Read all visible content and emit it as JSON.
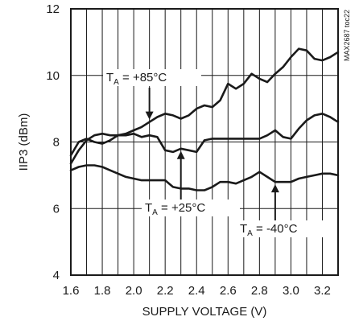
{
  "chart_data": {
    "type": "line",
    "title": "",
    "xlabel": "SUPPLY VOLTAGE (V)",
    "ylabel": "IIP3 (dBm)",
    "xlim": [
      1.6,
      3.3
    ],
    "ylim": [
      4,
      12
    ],
    "xticks": [
      1.6,
      1.8,
      2.0,
      2.2,
      2.4,
      2.6,
      2.8,
      3.0,
      3.2
    ],
    "xtick_labels": [
      "1.6",
      "1.8",
      "2.0",
      "2.2",
      "2.4",
      "2.6",
      "2.8",
      "3.0",
      "3.2"
    ],
    "yticks": [
      4,
      6,
      8,
      10,
      12
    ],
    "ytick_labels": [
      "4",
      "6",
      "8",
      "10",
      "12"
    ],
    "x_grid": [
      1.6,
      1.7,
      1.8,
      1.9,
      2.0,
      2.1,
      2.2,
      2.3,
      2.4,
      2.5,
      2.6,
      2.7,
      2.8,
      2.9,
      3.0,
      3.1,
      3.2,
      3.3
    ],
    "y_grid": [
      4,
      6,
      8,
      10,
      12
    ],
    "grid": true,
    "series": [
      {
        "name": "TA = +85°C",
        "x": [
          1.6,
          1.65,
          1.7,
          1.75,
          1.8,
          1.85,
          1.9,
          1.95,
          2.0,
          2.05,
          2.1,
          2.15,
          2.2,
          2.25,
          2.3,
          2.35,
          2.4,
          2.45,
          2.5,
          2.55,
          2.6,
          2.65,
          2.7,
          2.75,
          2.8,
          2.85,
          2.9,
          2.95,
          3.0,
          3.05,
          3.1,
          3.15,
          3.2,
          3.25,
          3.3
        ],
        "values": [
          7.6,
          8.0,
          8.1,
          8.0,
          7.95,
          8.05,
          8.2,
          8.25,
          8.35,
          8.45,
          8.6,
          8.75,
          8.85,
          8.8,
          8.7,
          8.8,
          9.0,
          9.1,
          9.05,
          9.25,
          9.75,
          9.6,
          9.75,
          10.05,
          9.9,
          9.8,
          10.05,
          10.25,
          10.55,
          10.8,
          10.75,
          10.5,
          10.45,
          10.55,
          10.7
        ]
      },
      {
        "name": "TA = +25°C",
        "x": [
          1.6,
          1.65,
          1.7,
          1.75,
          1.8,
          1.85,
          1.9,
          1.95,
          2.0,
          2.05,
          2.1,
          2.15,
          2.2,
          2.25,
          2.3,
          2.35,
          2.4,
          2.45,
          2.5,
          2.55,
          2.6,
          2.65,
          2.7,
          2.75,
          2.8,
          2.85,
          2.9,
          2.95,
          3.0,
          3.05,
          3.1,
          3.15,
          3.2,
          3.25,
          3.3
        ],
        "values": [
          7.35,
          7.75,
          8.05,
          8.2,
          8.25,
          8.2,
          8.2,
          8.2,
          8.25,
          8.15,
          8.2,
          8.15,
          7.75,
          7.7,
          7.8,
          7.75,
          7.7,
          8.05,
          8.1,
          8.1,
          8.1,
          8.1,
          8.1,
          8.1,
          8.1,
          8.2,
          8.35,
          8.15,
          8.1,
          8.4,
          8.65,
          8.8,
          8.85,
          8.75,
          8.6
        ]
      },
      {
        "name": "TA = -40°C",
        "x": [
          1.6,
          1.65,
          1.7,
          1.75,
          1.8,
          1.85,
          1.9,
          1.95,
          2.0,
          2.05,
          2.1,
          2.15,
          2.2,
          2.25,
          2.3,
          2.35,
          2.4,
          2.45,
          2.5,
          2.55,
          2.6,
          2.65,
          2.7,
          2.75,
          2.8,
          2.85,
          2.9,
          2.95,
          3.0,
          3.05,
          3.1,
          3.15,
          3.2,
          3.25,
          3.3
        ],
        "values": [
          7.15,
          7.25,
          7.3,
          7.3,
          7.25,
          7.15,
          7.05,
          6.95,
          6.9,
          6.85,
          6.85,
          6.85,
          6.85,
          6.65,
          6.6,
          6.6,
          6.55,
          6.55,
          6.65,
          6.8,
          6.8,
          6.75,
          6.85,
          6.95,
          7.1,
          6.95,
          6.8,
          6.8,
          6.8,
          6.9,
          6.95,
          7.0,
          7.05,
          7.05,
          7.0
        ]
      }
    ],
    "annotations": [
      {
        "main": "T",
        "sub": "A",
        "rest": " = +85°C",
        "series": 0,
        "arrow_x": 2.1
      },
      {
        "main": "T",
        "sub": "A",
        "rest": " = +25°C",
        "series": 1,
        "arrow_x": 2.3
      },
      {
        "main": "T",
        "sub": "A",
        "rest": " = -40°C",
        "series": 2,
        "arrow_x": 2.9
      }
    ],
    "watermark": "MAX2687 toc22"
  }
}
